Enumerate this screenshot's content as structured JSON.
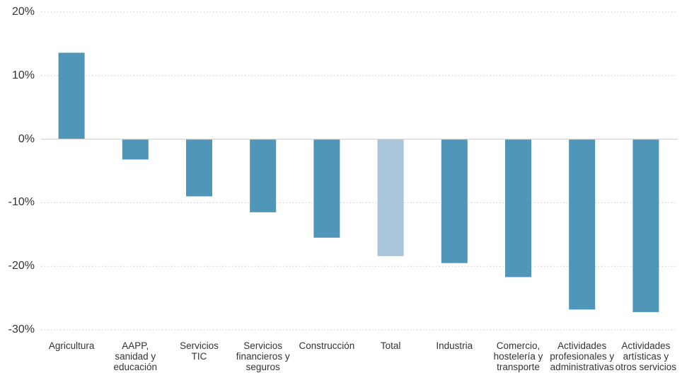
{
  "chart_data": {
    "type": "bar",
    "categories": [
      "Agricultura",
      "AAPP,\nsanidad y\neducación",
      "Servicios\nTIC",
      "Servicios\nfinancieros y\nseguros",
      "Construcción",
      "Total",
      "Industria",
      "Comercio,\nhostelería y\ntransporte",
      "Actividades\nprofesionales y\nadministrativas",
      "Actividades\nartísticas y\notros servicios"
    ],
    "values": [
      13.6,
      -3.2,
      -9.0,
      -11.5,
      -15.5,
      -18.4,
      -19.5,
      -21.7,
      -26.8,
      -27.2
    ],
    "ylim": [
      -30,
      20
    ],
    "yticks": [
      20,
      10,
      0,
      -10,
      -20,
      -30
    ],
    "ytick_labels": [
      "20%",
      "10%",
      "0%",
      "-10%",
      "-20%",
      "-30%"
    ],
    "grid": true,
    "legend": "none",
    "highlighted_categories": [
      "Total"
    ],
    "colors": {
      "bar": "#4f96b8",
      "highlight": "#a8c5da",
      "grid": "#c9c9c9",
      "text": "#333333"
    }
  }
}
